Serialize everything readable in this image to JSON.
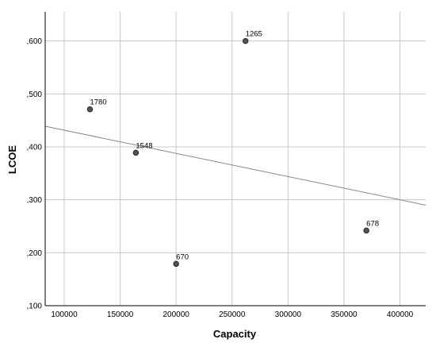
{
  "chart_data": {
    "type": "scatter",
    "xlabel": "Capacity",
    "ylabel": "LCOE",
    "xlim": [
      83000,
      423000
    ],
    "ylim": [
      0.1,
      0.655
    ],
    "x_ticks": [
      100000,
      150000,
      200000,
      250000,
      300000,
      350000,
      400000
    ],
    "x_tick_labels": [
      "100000",
      "150000",
      "200000",
      "250000",
      "300000",
      "350000",
      "400000"
    ],
    "y_ticks": [
      0.1,
      0.2,
      0.3,
      0.4,
      0.5,
      0.6
    ],
    "y_tick_labels": [
      ",100",
      ",200",
      ",300",
      ",400",
      ",500",
      ",600"
    ],
    "grid": true,
    "points": [
      {
        "label": "1265",
        "x": 262000,
        "y": 0.6
      },
      {
        "label": "1780",
        "x": 123000,
        "y": 0.471
      },
      {
        "label": "1548",
        "x": 164000,
        "y": 0.389
      },
      {
        "label": "670",
        "x": 200000,
        "y": 0.179
      },
      {
        "label": "678",
        "x": 370000,
        "y": 0.242
      }
    ],
    "fit_line": {
      "x": [
        83000,
        423000
      ],
      "y": [
        0.439,
        0.29
      ]
    },
    "colors": {
      "marker_fill": "#555555",
      "marker_stroke": "#222222",
      "grid": "#c8c8c8",
      "fit_line": "#888888",
      "axis": "#000000"
    }
  }
}
